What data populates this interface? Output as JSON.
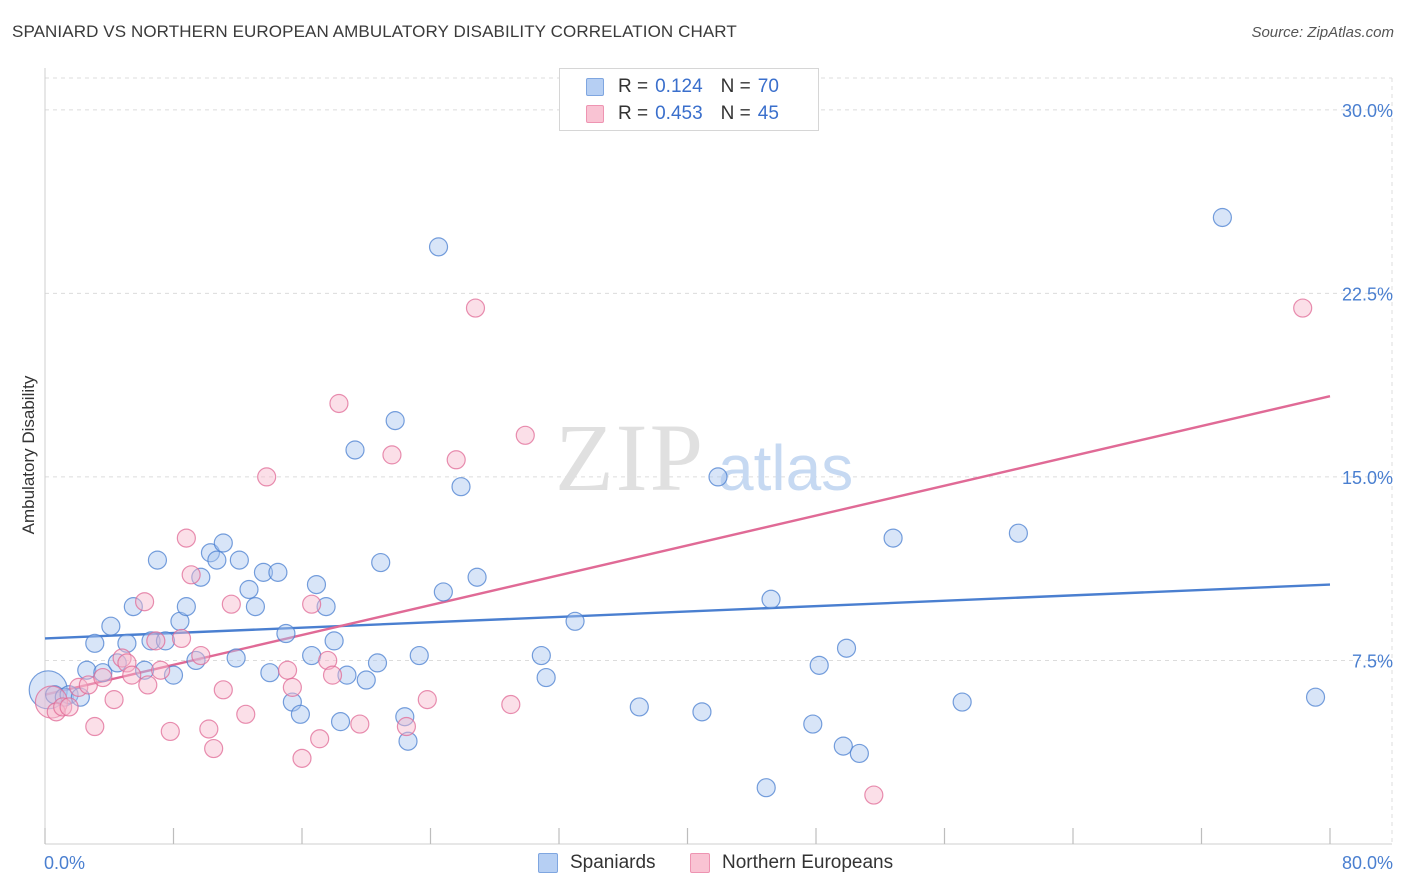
{
  "title": "SPANIARD VS NORTHERN EUROPEAN AMBULATORY DISABILITY CORRELATION CHART",
  "source": "Source: ZipAtlas.com",
  "watermark": {
    "zip": "ZIP",
    "atlas": "atlas"
  },
  "legend": {
    "r_label": "R =",
    "n_label": "N =",
    "rows": [
      {
        "name": "Spaniards",
        "r": "0.124",
        "n": "70",
        "color": "#4a7fd0"
      },
      {
        "name": "Northern Europeans",
        "r": "0.453",
        "n": "45",
        "color": "#e06a96"
      }
    ]
  },
  "chart_data": {
    "type": "scatter",
    "title": "SPANIARD VS NORTHERN EUROPEAN AMBULATORY DISABILITY CORRELATION CHART",
    "xlabel": "",
    "ylabel": "Ambulatory Disability",
    "xlim": [
      0,
      80
    ],
    "ylim": [
      0,
      31.3
    ],
    "x_tick_labels": [
      "0.0%",
      "80.0%"
    ],
    "y_ticks": [
      7.5,
      15.0,
      22.5,
      30.0
    ],
    "y_tick_labels": [
      "7.5%",
      "15.0%",
      "22.5%",
      "30.0%"
    ],
    "grid": true,
    "legend_position": "top-center",
    "series": [
      {
        "name": "Spaniards",
        "color": "#4a7fd0",
        "fill": "#a9c6f0",
        "trend": {
          "x0": 0,
          "y0": 8.4,
          "x1": 80,
          "y1": 10.6
        },
        "points": [
          [
            0.2,
            6.3
          ],
          [
            0.6,
            6.1
          ],
          [
            1.2,
            6.0
          ],
          [
            1.5,
            6.1
          ],
          [
            2.2,
            6.0
          ],
          [
            2.6,
            7.1
          ],
          [
            3.1,
            8.2
          ],
          [
            3.6,
            7.0
          ],
          [
            4.1,
            8.9
          ],
          [
            4.5,
            7.4
          ],
          [
            5.1,
            8.2
          ],
          [
            5.5,
            9.7
          ],
          [
            6.2,
            7.1
          ],
          [
            6.6,
            8.3
          ],
          [
            7.0,
            11.6
          ],
          [
            7.5,
            8.3
          ],
          [
            8.0,
            6.9
          ],
          [
            8.4,
            9.1
          ],
          [
            8.8,
            9.7
          ],
          [
            9.4,
            7.5
          ],
          [
            9.7,
            10.9
          ],
          [
            10.3,
            11.9
          ],
          [
            10.7,
            11.6
          ],
          [
            11.1,
            12.3
          ],
          [
            11.9,
            7.6
          ],
          [
            12.1,
            11.6
          ],
          [
            12.7,
            10.4
          ],
          [
            13.1,
            9.7
          ],
          [
            13.6,
            11.1
          ],
          [
            14.0,
            7.0
          ],
          [
            14.5,
            11.1
          ],
          [
            15.0,
            8.6
          ],
          [
            15.4,
            5.8
          ],
          [
            15.9,
            5.3
          ],
          [
            16.6,
            7.7
          ],
          [
            16.9,
            10.6
          ],
          [
            17.5,
            9.7
          ],
          [
            18.0,
            8.3
          ],
          [
            18.4,
            5.0
          ],
          [
            18.8,
            6.9
          ],
          [
            19.3,
            16.1
          ],
          [
            20.0,
            6.7
          ],
          [
            20.7,
            7.4
          ],
          [
            20.9,
            11.5
          ],
          [
            21.8,
            17.3
          ],
          [
            22.4,
            5.2
          ],
          [
            22.6,
            4.2
          ],
          [
            23.3,
            7.7
          ],
          [
            24.5,
            24.4
          ],
          [
            24.8,
            10.3
          ],
          [
            25.9,
            14.6
          ],
          [
            26.9,
            10.9
          ],
          [
            30.9,
            7.7
          ],
          [
            31.2,
            6.8
          ],
          [
            33.0,
            9.1
          ],
          [
            37.0,
            5.6
          ],
          [
            40.9,
            5.4
          ],
          [
            41.9,
            15.0
          ],
          [
            44.9,
            2.3
          ],
          [
            45.2,
            10.0
          ],
          [
            47.8,
            4.9
          ],
          [
            48.2,
            7.3
          ],
          [
            49.7,
            4.0
          ],
          [
            49.9,
            8.0
          ],
          [
            50.7,
            3.7
          ],
          [
            52.8,
            12.5
          ],
          [
            57.1,
            5.8
          ],
          [
            60.6,
            12.7
          ],
          [
            73.3,
            25.6
          ],
          [
            79.1,
            6.0
          ]
        ]
      },
      {
        "name": "Northern Europeans",
        "color": "#e06a96",
        "fill": "#f6b9cd",
        "trend": {
          "x0": 0,
          "y0": 6.1,
          "x1": 80,
          "y1": 18.3
        },
        "points": [
          [
            0.4,
            5.8
          ],
          [
            0.7,
            5.4
          ],
          [
            1.1,
            5.6
          ],
          [
            1.5,
            5.6
          ],
          [
            2.1,
            6.4
          ],
          [
            2.7,
            6.5
          ],
          [
            3.1,
            4.8
          ],
          [
            3.6,
            6.8
          ],
          [
            4.3,
            5.9
          ],
          [
            4.8,
            7.6
          ],
          [
            5.1,
            7.4
          ],
          [
            5.4,
            6.9
          ],
          [
            6.2,
            9.9
          ],
          [
            6.4,
            6.5
          ],
          [
            6.9,
            8.3
          ],
          [
            7.2,
            7.1
          ],
          [
            7.8,
            4.6
          ],
          [
            8.5,
            8.4
          ],
          [
            8.8,
            12.5
          ],
          [
            9.1,
            11.0
          ],
          [
            9.7,
            7.7
          ],
          [
            10.2,
            4.7
          ],
          [
            10.5,
            3.9
          ],
          [
            11.1,
            6.3
          ],
          [
            11.6,
            9.8
          ],
          [
            12.5,
            5.3
          ],
          [
            13.8,
            15.0
          ],
          [
            15.1,
            7.1
          ],
          [
            15.4,
            6.4
          ],
          [
            16.0,
            3.5
          ],
          [
            16.6,
            9.8
          ],
          [
            17.1,
            4.3
          ],
          [
            17.6,
            7.5
          ],
          [
            17.9,
            6.9
          ],
          [
            18.3,
            18.0
          ],
          [
            19.6,
            4.9
          ],
          [
            21.6,
            15.9
          ],
          [
            22.5,
            4.8
          ],
          [
            23.8,
            5.9
          ],
          [
            25.6,
            15.7
          ],
          [
            26.8,
            21.9
          ],
          [
            29.0,
            5.7
          ],
          [
            29.9,
            16.7
          ],
          [
            51.6,
            2.0
          ],
          [
            78.3,
            21.9
          ]
        ]
      }
    ]
  }
}
